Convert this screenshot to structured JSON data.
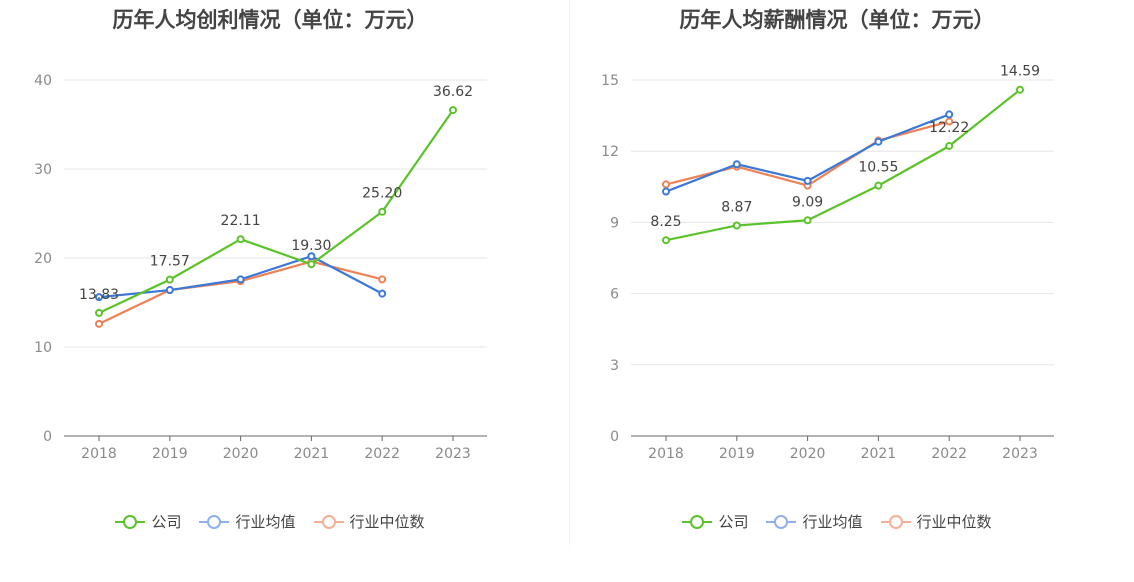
{
  "colors": {
    "company": "#5bc32a",
    "avg": "#3c78d8",
    "median": "#ee8155",
    "grid": "#e6e6e6",
    "axis": "#666666"
  },
  "legend": [
    "公司",
    "行业均值",
    "行业中位数"
  ],
  "chart_data": [
    {
      "type": "line",
      "title": "历年人均创利情况（单位：万元）",
      "categories": [
        "2018",
        "2019",
        "2020",
        "2021",
        "2022",
        "2023"
      ],
      "ylim": [
        0,
        40
      ],
      "yticks": [
        0,
        10,
        20,
        30,
        40
      ],
      "grid": true,
      "legend_position": "bottom",
      "series": [
        {
          "name": "公司",
          "values": [
            13.83,
            17.57,
            22.11,
            19.3,
            25.2,
            36.62
          ],
          "labels": [
            "13.83",
            "17.57",
            "22.11",
            "19.30",
            "25.20",
            "36.62"
          ]
        },
        {
          "name": "行业均值",
          "values": [
            15.6,
            16.4,
            17.6,
            20.2,
            16.0,
            null
          ]
        },
        {
          "name": "行业中位数",
          "values": [
            12.6,
            16.4,
            17.4,
            19.6,
            17.6,
            null
          ]
        }
      ]
    },
    {
      "type": "line",
      "title": "历年人均薪酬情况（单位：万元）",
      "categories": [
        "2018",
        "2019",
        "2020",
        "2021",
        "2022",
        "2023"
      ],
      "ylim": [
        0,
        15
      ],
      "yticks": [
        0,
        3,
        6,
        9,
        12,
        15
      ],
      "grid": true,
      "legend_position": "bottom",
      "series": [
        {
          "name": "公司",
          "values": [
            8.25,
            8.87,
            9.09,
            10.55,
            12.22,
            14.59
          ],
          "labels": [
            "8.25",
            "8.87",
            "9.09",
            "10.55",
            "12.22",
            "14.59"
          ]
        },
        {
          "name": "行业均值",
          "values": [
            10.3,
            11.45,
            10.75,
            12.4,
            13.55,
            null
          ]
        },
        {
          "name": "行业中位数",
          "values": [
            10.6,
            11.35,
            10.55,
            12.45,
            13.25,
            null
          ]
        }
      ]
    }
  ]
}
